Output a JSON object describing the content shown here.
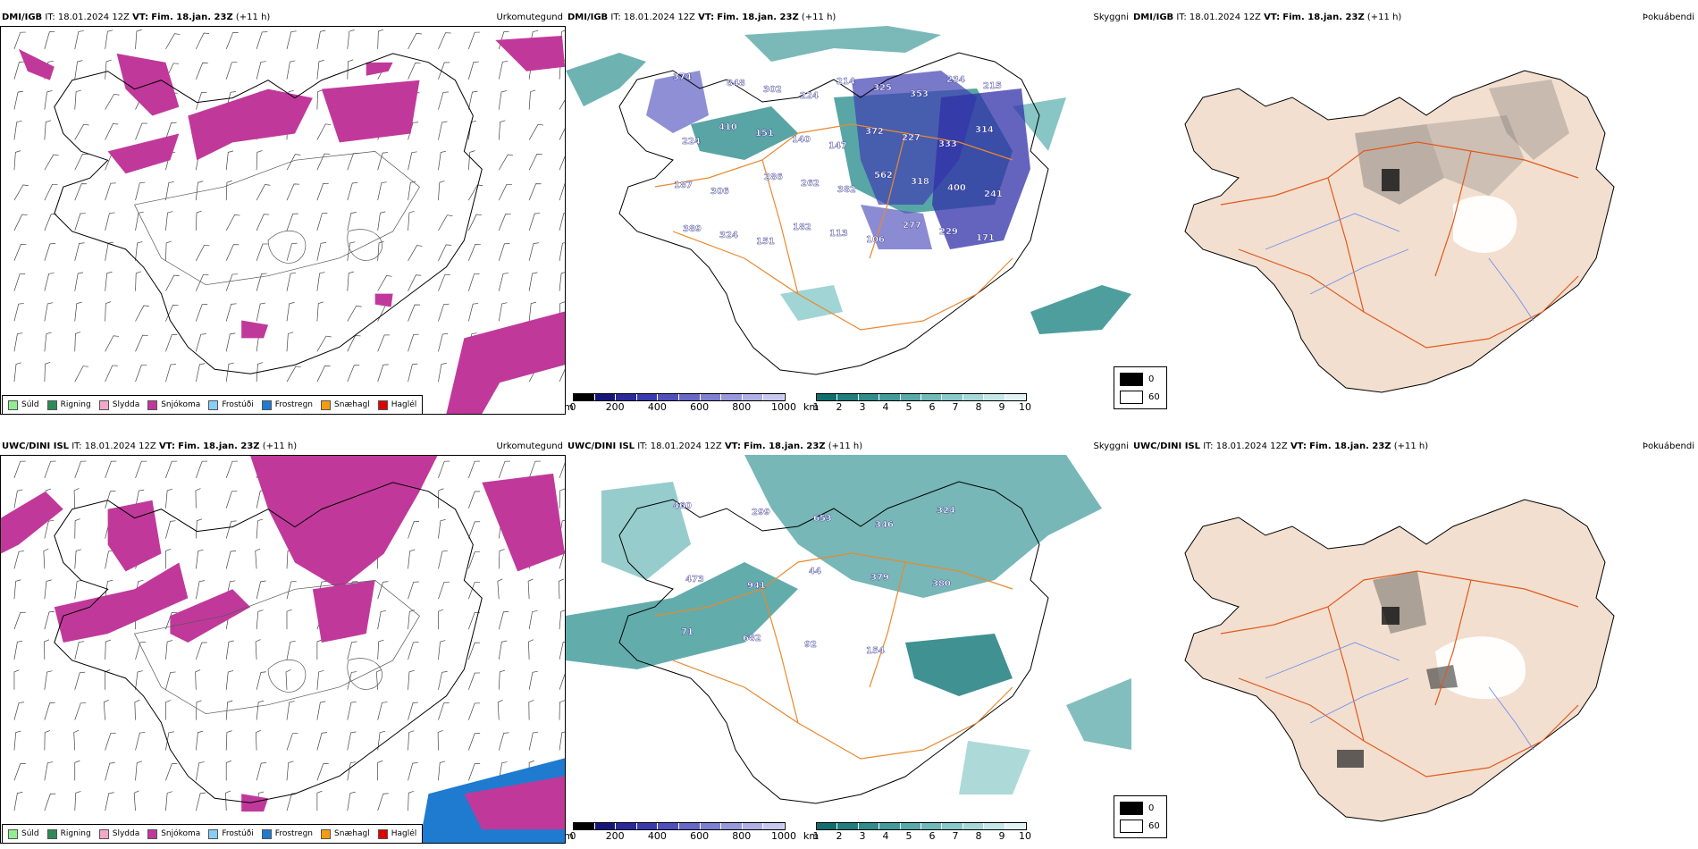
{
  "rows": [
    {
      "model": "DMI/IGB",
      "it_label": "IT:",
      "it_value": "18.01.2024 12Z",
      "vt_label": "VT:",
      "vt_value": "Fim. 18.jan. 23Z",
      "lead": "(+11 h)"
    },
    {
      "model": "UWC/DINI ISL",
      "it_label": "IT:",
      "it_value": "18.01.2024 12Z",
      "vt_label": "VT:",
      "vt_value": "Fim. 18.jan. 23Z",
      "lead": "(+11 h)"
    }
  ],
  "panel_titles": {
    "precip": "Úrkomutegund",
    "cloud": "Skyggni",
    "fog": "Þokuábendi"
  },
  "precip_legend": [
    {
      "label": "Súld",
      "color": "#90ee90"
    },
    {
      "label": "Rigning",
      "color": "#2e8b57"
    },
    {
      "label": "Slydda",
      "color": "#f4a7c8"
    },
    {
      "label": "Snjókoma",
      "color": "#c0399a"
    },
    {
      "label": "Frostúði",
      "color": "#87cefa"
    },
    {
      "label": "Frostregn",
      "color": "#1e7bd0"
    },
    {
      "label": "Snæhagl",
      "color": "#f39c12"
    },
    {
      "label": "Haglél",
      "color": "#e00000"
    }
  ],
  "cloudbase_scale": {
    "unit": "m",
    "ticks": [
      "0",
      "200",
      "400",
      "600",
      "800",
      "1000"
    ],
    "colors": [
      "#000000",
      "#16167a",
      "#2a2a9a",
      "#3b3bb0",
      "#5050bd",
      "#6868c8",
      "#8080d2",
      "#9898dc",
      "#b0b0e6",
      "#c8c8f0"
    ]
  },
  "visibility_scale": {
    "unit": "km",
    "ticks": [
      "1",
      "2",
      "3",
      "4",
      "5",
      "6",
      "7",
      "8",
      "9",
      "10"
    ],
    "colors": [
      "#0f6f6f",
      "#1f7e7e",
      "#2f8d8d",
      "#439c9c",
      "#58abab",
      "#70baba",
      "#8ac9c9",
      "#a6d8d8",
      "#c4e7e7",
      "#e2f3f3"
    ]
  },
  "fog_scale": {
    "entries": [
      {
        "value": "0",
        "color": "#000000"
      },
      {
        "value": "60",
        "color": "#ffffff"
      }
    ]
  },
  "cloudbase_labels": [
    [
      "374",
      "848",
      "302",
      "224",
      "214",
      "325",
      "353",
      "234",
      "215",
      "224",
      "410",
      "151",
      "140",
      "147",
      "372",
      "227",
      "333",
      "314",
      "187",
      "306",
      "286",
      "262",
      "382",
      "562",
      "318",
      "400",
      "241",
      "389",
      "324",
      "151",
      "182",
      "113",
      "106",
      "277",
      "229",
      "171"
    ],
    [
      "460",
      "299",
      "653",
      "346",
      "324",
      "473",
      "941",
      "44",
      "379",
      "380",
      "71",
      "682",
      "92",
      "154"
    ]
  ],
  "colors": {
    "land_fog": "#f2dfcf",
    "roads": "#e05a1e",
    "rivers": "#6f8ff0",
    "roads_cloud": "#e8892e",
    "coast": "#000000",
    "snow": "#c0399a",
    "frz_rain": "#1e7bd0"
  }
}
